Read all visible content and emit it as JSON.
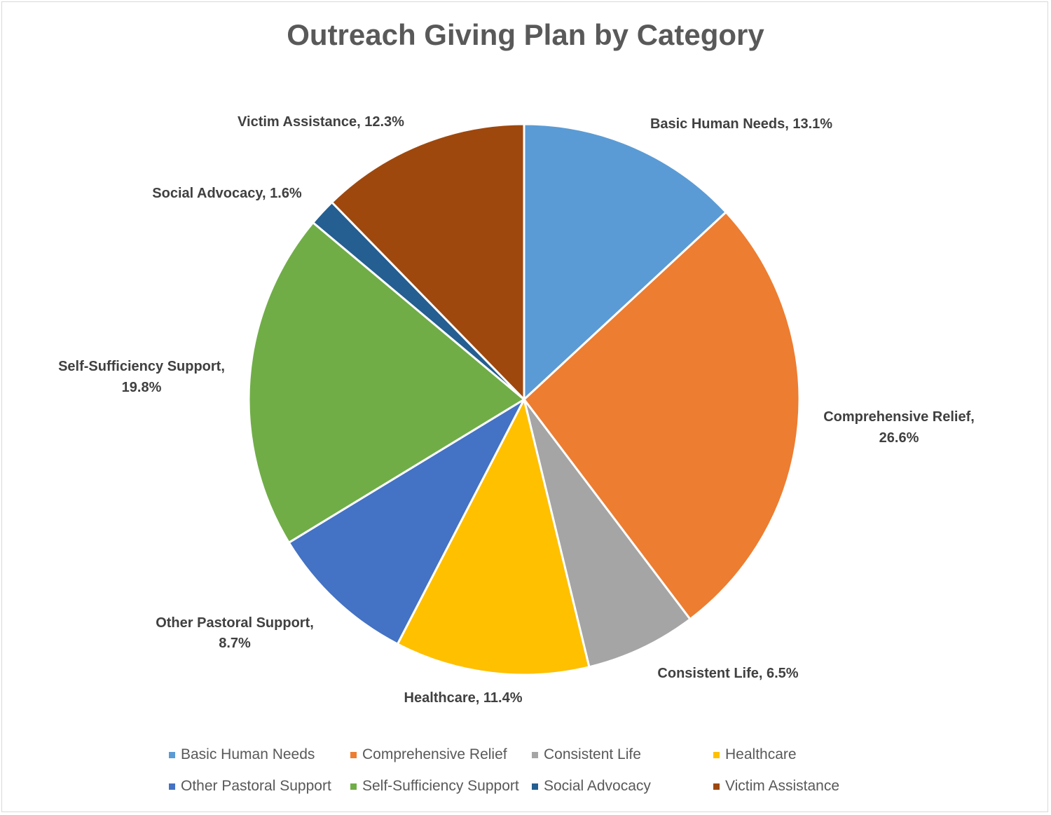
{
  "chart_data": {
    "type": "pie",
    "title": "Outreach Giving Plan by Category",
    "slices": [
      {
        "label": "Basic Human Needs",
        "value": 13.1,
        "display": "13.1%",
        "color": "#5b9bd5"
      },
      {
        "label": "Comprehensive Relief",
        "value": 26.6,
        "display": "26.6%",
        "color": "#ed7d31"
      },
      {
        "label": "Consistent Life",
        "value": 6.5,
        "display": "6.5%",
        "color": "#a5a5a5"
      },
      {
        "label": "Healthcare",
        "value": 11.4,
        "display": "11.4%",
        "color": "#ffc000"
      },
      {
        "label": "Other Pastoral Support",
        "value": 8.7,
        "display": "8.7%",
        "color": "#4472c4"
      },
      {
        "label": "Self-Sufficiency Support",
        "value": 19.8,
        "display": "19.8%",
        "color": "#70ad47"
      },
      {
        "label": "Social Advocacy",
        "value": 1.6,
        "display": "1.6%",
        "color": "#255e91"
      },
      {
        "label": "Victim Assistance",
        "value": 12.3,
        "display": "12.3%",
        "color": "#9e480e"
      }
    ],
    "legend_position": "bottom"
  }
}
